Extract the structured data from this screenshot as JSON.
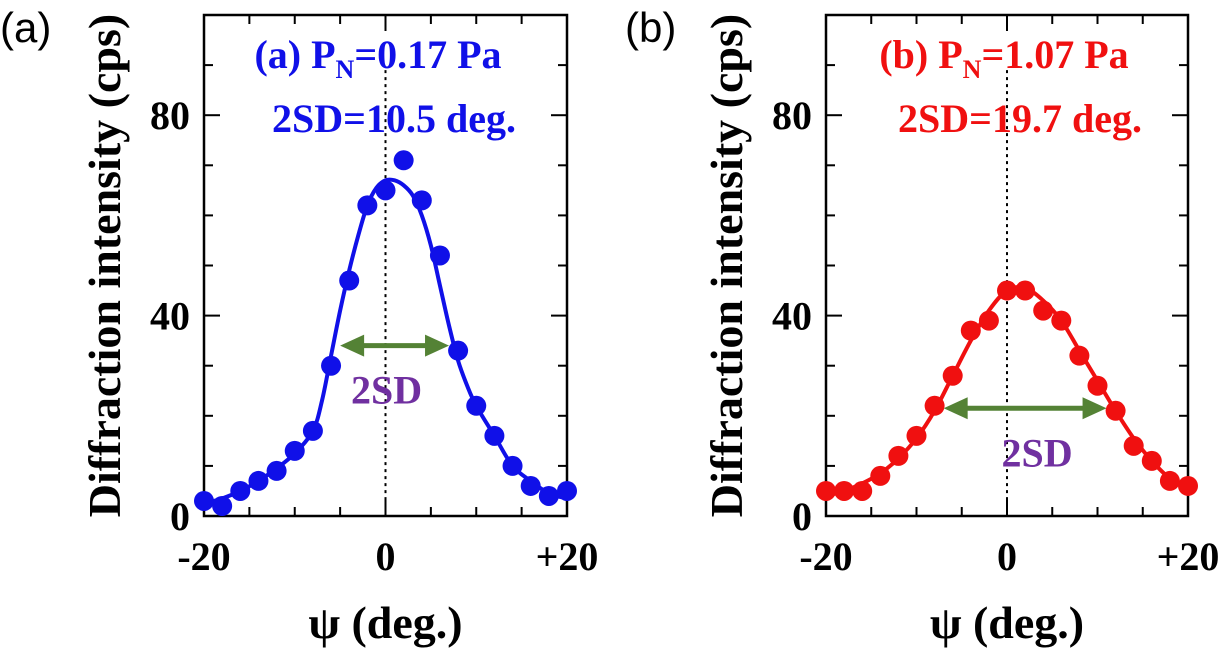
{
  "figure": {
    "axis_tick_marks": [
      "-20",
      "0",
      "+20"
    ],
    "span_arrow_color": "#548235",
    "span_label_color": "#7030a0"
  },
  "chart_data": [
    {
      "type": "scatter",
      "panel_label": "(a)",
      "annotation": {
        "prefix": "(a) P",
        "subscript": "N",
        "value": "=0.17 Pa",
        "line2": "2SD=10.5 deg."
      },
      "xlabel": "ψ (deg.)",
      "ylabel": "Diffraction intensity (cps)",
      "xlim": [
        -20,
        20
      ],
      "ylim": [
        0,
        100
      ],
      "x_ticks": [
        -20,
        0,
        20
      ],
      "x_tick_labels": [
        "-20",
        "0",
        "+20"
      ],
      "y_ticks": [
        0,
        40,
        80
      ],
      "y_tick_labels": [
        "0",
        "40",
        "80"
      ],
      "color": "#1010e8",
      "series": [
        {
          "points": [
            [
              -20,
              3
            ],
            [
              -18,
              2
            ],
            [
              -16,
              5
            ],
            [
              -14,
              7
            ],
            [
              -12,
              9
            ],
            [
              -10,
              13
            ],
            [
              -8,
              17
            ],
            [
              -6,
              30
            ],
            [
              -4,
              47
            ],
            [
              -2,
              62
            ],
            [
              0,
              65
            ],
            [
              2,
              71
            ],
            [
              4,
              63
            ],
            [
              6,
              52
            ],
            [
              8,
              33
            ],
            [
              10,
              22
            ],
            [
              12,
              16
            ],
            [
              14,
              10
            ],
            [
              16,
              6
            ],
            [
              18,
              4
            ],
            [
              20,
              5
            ]
          ],
          "fit_curve": [
            [
              -20,
              2.5
            ],
            [
              -18,
              3.5
            ],
            [
              -16,
              5
            ],
            [
              -14,
              7
            ],
            [
              -12,
              9.5
            ],
            [
              -10,
              12.5
            ],
            [
              -8,
              17
            ],
            [
              -7,
              23
            ],
            [
              -6,
              32
            ],
            [
              -5,
              41
            ],
            [
              -4,
              49
            ],
            [
              -3,
              56
            ],
            [
              -2,
              62
            ],
            [
              -1,
              65.5
            ],
            [
              0,
              67
            ],
            [
              1,
              67
            ],
            [
              2,
              66
            ],
            [
              3,
              64
            ],
            [
              4,
              60
            ],
            [
              5,
              54
            ],
            [
              6,
              46
            ],
            [
              7,
              38
            ],
            [
              8,
              31
            ],
            [
              9,
              26
            ],
            [
              10,
              22
            ],
            [
              12,
              16
            ],
            [
              14,
              10
            ],
            [
              16,
              7
            ],
            [
              18,
              4.5
            ],
            [
              20,
              3.5
            ]
          ]
        }
      ],
      "span": {
        "x1": -5,
        "x2": 7,
        "y": 34,
        "label": "2SD"
      },
      "center_line_x": 0
    },
    {
      "type": "scatter",
      "panel_label": "(b)",
      "annotation": {
        "prefix": "(b) P",
        "subscript": "N",
        "value": "=1.07 Pa",
        "line2": "2SD=19.7 deg."
      },
      "xlabel": "ψ (deg.)",
      "ylabel": "Diffraction intensity (cps)",
      "xlim": [
        -20,
        20
      ],
      "ylim": [
        0,
        100
      ],
      "x_ticks": [
        -20,
        0,
        20
      ],
      "x_tick_labels": [
        "-20",
        "0",
        "+20"
      ],
      "y_ticks": [
        0,
        40,
        80
      ],
      "y_tick_labels": [
        "0",
        "40",
        "80"
      ],
      "color": "#f01010",
      "series": [
        {
          "points": [
            [
              -20,
              5
            ],
            [
              -18,
              5
            ],
            [
              -16,
              5
            ],
            [
              -14,
              8
            ],
            [
              -12,
              12
            ],
            [
              -10,
              16
            ],
            [
              -8,
              22
            ],
            [
              -6,
              28
            ],
            [
              -4,
              37
            ],
            [
              -2,
              39
            ],
            [
              0,
              45
            ],
            [
              2,
              45
            ],
            [
              4,
              41
            ],
            [
              6,
              39
            ],
            [
              8,
              32
            ],
            [
              10,
              26
            ],
            [
              12,
              21
            ],
            [
              14,
              14
            ],
            [
              16,
              11
            ],
            [
              18,
              7
            ],
            [
              20,
              6
            ]
          ],
          "fit_curve": [
            [
              -20,
              4
            ],
            [
              -18,
              5
            ],
            [
              -16,
              6.5
            ],
            [
              -14,
              8.5
            ],
            [
              -12,
              11.5
            ],
            [
              -10,
              15.5
            ],
            [
              -8,
              21
            ],
            [
              -6,
              28
            ],
            [
              -4,
              35
            ],
            [
              -2,
              41
            ],
            [
              0,
              45
            ],
            [
              2,
              45.5
            ],
            [
              4,
              43
            ],
            [
              6,
              39
            ],
            [
              8,
              33
            ],
            [
              10,
              27
            ],
            [
              12,
              21
            ],
            [
              14,
              15.5
            ],
            [
              16,
              11
            ],
            [
              18,
              7.5
            ],
            [
              20,
              5.5
            ]
          ]
        }
      ],
      "span": {
        "x1": -7,
        "x2": 11,
        "y": 21.5,
        "label": "2SD"
      },
      "center_line_x": 0
    }
  ]
}
